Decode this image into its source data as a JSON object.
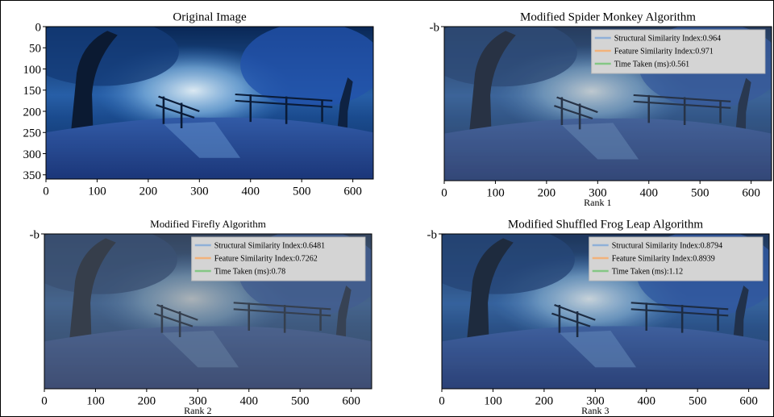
{
  "chart_data": [
    {
      "type": "image",
      "title": "Original Image",
      "xlim": [
        0,
        640
      ],
      "xticks": [
        0,
        100,
        200,
        300,
        400,
        500,
        600
      ],
      "ylim": [
        0,
        360
      ],
      "yticks": [
        0,
        50,
        100,
        150,
        200,
        250,
        300,
        350
      ]
    },
    {
      "type": "image",
      "title": "Modified Spider Monkey Algorithm",
      "xlabel": "Rank 1",
      "xlim": [
        0,
        640
      ],
      "xticks": [
        0,
        100,
        200,
        300,
        400,
        500,
        600
      ],
      "ylim": [
        0,
        360
      ],
      "yticks": [
        {
          "value": 0,
          "label": "-b"
        }
      ],
      "series": [
        {
          "name": "Structural Similarity Index:0.964",
          "color": "#8fb0d8"
        },
        {
          "name": "Feature Similarity Index:0.971",
          "color": "#f2b27a"
        },
        {
          "name": "Time Taken (ms):0.561",
          "color": "#84c784"
        }
      ]
    },
    {
      "type": "image",
      "title": "Modified Firefly Algorithm",
      "xlabel": "Rank 2",
      "xlim": [
        0,
        640
      ],
      "xticks": [
        0,
        100,
        200,
        300,
        400,
        500,
        600
      ],
      "ylim": [
        0,
        360
      ],
      "yticks": [
        {
          "value": 0,
          "label": "-b"
        }
      ],
      "series": [
        {
          "name": "Structural Similarity Index:0.6481",
          "color": "#8fb0d8"
        },
        {
          "name": "Feature Similarity Index:0.7262",
          "color": "#f2b27a"
        },
        {
          "name": "Time Taken (ms):0.78",
          "color": "#84c784"
        }
      ]
    },
    {
      "type": "image",
      "title": "Modified Shuffled Frog Leap Algorithm",
      "xlabel": "Rank 3",
      "xlim": [
        0,
        640
      ],
      "xticks": [
        0,
        100,
        200,
        300,
        400,
        500,
        600
      ],
      "ylim": [
        0,
        360
      ],
      "yticks": [
        {
          "value": 0,
          "label": "-b"
        }
      ],
      "series": [
        {
          "name": "Structural Similarity Index:0.8794",
          "color": "#8fb0d8"
        },
        {
          "name": "Feature Similarity Index:0.8939",
          "color": "#f2b27a"
        },
        {
          "name": "Time Taken (ms):1.12",
          "color": "#84c784"
        }
      ]
    }
  ]
}
